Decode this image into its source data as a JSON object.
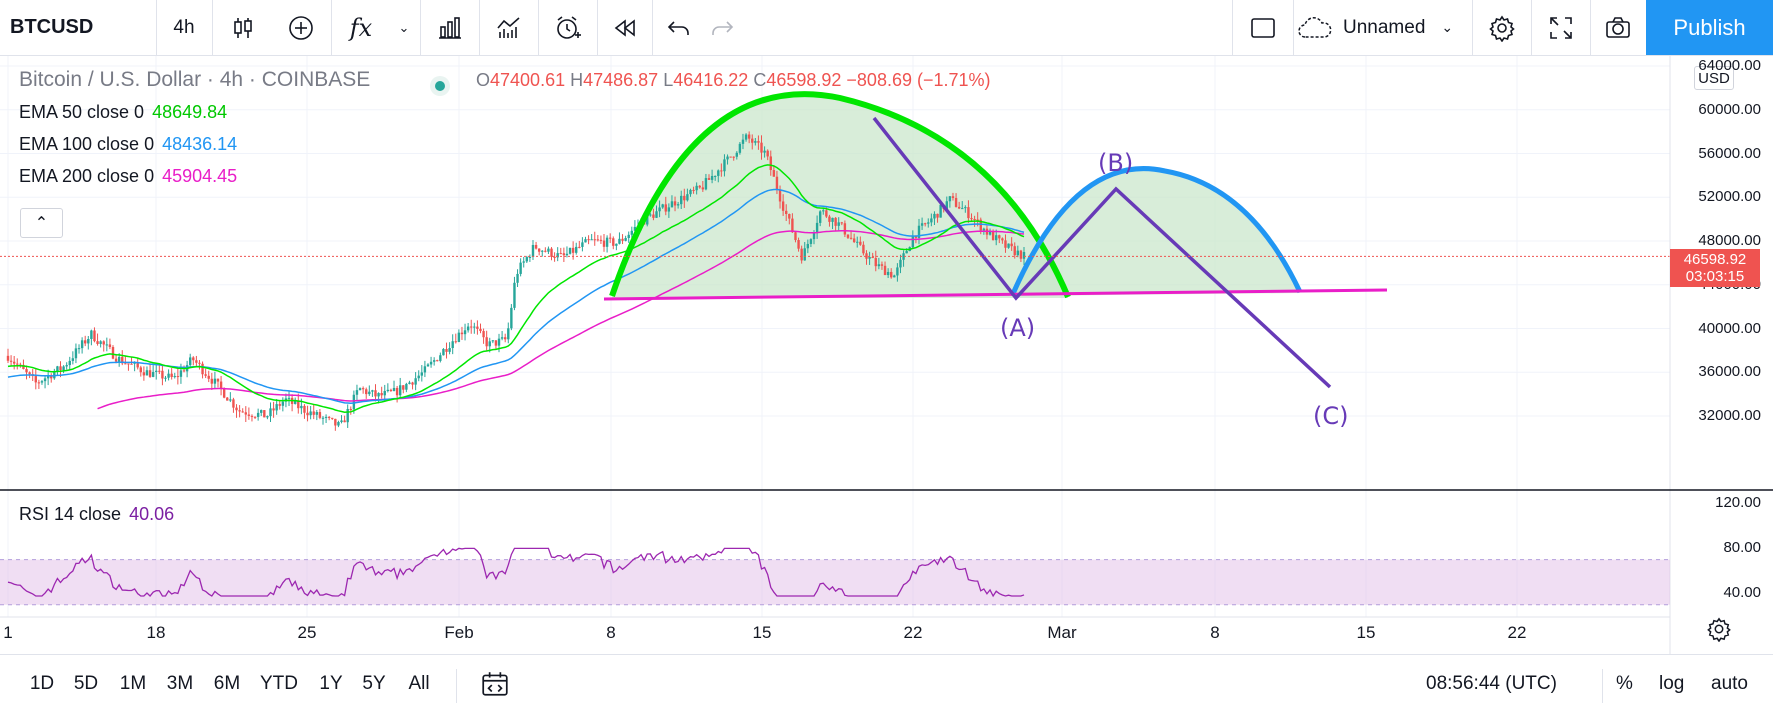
{
  "toolbar": {
    "symbol": "BTCUSD",
    "interval": "4h",
    "chart_style_icon": "candles-icon",
    "compare_icon": "plus-circle-icon",
    "indicators_icon": "fx-icon",
    "template_icon": "bar-chart-icon",
    "financials_icon": "line-bars-icon",
    "alert_icon": "alarm-clock-icon",
    "replay_icon": "rewind-icon",
    "undo_icon": "undo-icon",
    "redo_icon": "redo-icon",
    "layout_icon": "square-icon",
    "layout_name": "Unnamed",
    "settings_icon": "gear-icon",
    "fullscreen_icon": "fullscreen-icon",
    "snapshot_icon": "camera-icon",
    "publish_label": "Publish"
  },
  "legend": {
    "title": "Bitcoin / U.S. Dollar · 4h · COINBASE",
    "ohlc": {
      "o_label": "O",
      "o_value": "47400.61",
      "h_label": "H",
      "h_value": "47486.87",
      "l_label": "L",
      "l_value": "46416.22",
      "c_label": "C",
      "c_value": "46598.92",
      "change": "−808.69 (−1.71%)"
    },
    "indicators": [
      {
        "label": "EMA 50 close 0",
        "value": "48649.84",
        "color": "#00e600"
      },
      {
        "label": "EMA 100 close 0",
        "value": "48436.14",
        "color": "#2196f3"
      },
      {
        "label": "EMA 200 close 0",
        "value": "45904.45",
        "color": "#e91ec8"
      }
    ],
    "collapse_icon": "chevron-up-icon"
  },
  "price_axis": {
    "currency": "USD",
    "ticks": [
      "64000.00",
      "60000.00",
      "56000.00",
      "52000.00",
      "48000.00",
      "44000.00",
      "40000.00",
      "36000.00",
      "32000.00"
    ],
    "last_price": "46598.92",
    "countdown": "03:03:15"
  },
  "annotations": {
    "wave_a": "(A)",
    "wave_b": "(B)",
    "wave_c": "(C)"
  },
  "rsi": {
    "label": "RSI 14 close",
    "value": "40.06",
    "ticks": [
      "120.00",
      "80.00",
      "40.00"
    ],
    "band_upper": 70,
    "band_lower": 30
  },
  "time_axis": {
    "labels": [
      "1",
      "18",
      "25",
      "Feb",
      "8",
      "15",
      "22",
      "Mar",
      "8",
      "15",
      "22"
    ],
    "settings_icon": "gear-icon"
  },
  "bottombar": {
    "ranges": [
      "1D",
      "5D",
      "1M",
      "3M",
      "6M",
      "YTD",
      "1Y",
      "5Y",
      "All"
    ],
    "goto_icon": "calendar-range-icon",
    "clock": "08:56:44 (UTC)",
    "percent_label": "%",
    "log_label": "log",
    "auto_label": "auto"
  },
  "colors": {
    "up": "#26a69a",
    "down": "#ef5350",
    "ema50": "#00e600",
    "ema100": "#2196f3",
    "ema200": "#e91ec8",
    "arc_green": "#00e600",
    "arc_blue": "#2196f3",
    "wave_lines": "#673ab7",
    "neckline": "#e91ec8",
    "rsi": "#9c27b0",
    "publish": "#2196f3"
  },
  "chart_data": {
    "type": "candlestick",
    "title": "Bitcoin / U.S. Dollar · 4h · COINBASE",
    "price_range": [
      30000,
      64000
    ],
    "x_labels": [
      "1",
      "18",
      "25",
      "Feb",
      "8",
      "15",
      "22",
      "Mar",
      "8",
      "15",
      "22"
    ],
    "price_path": [
      [
        0,
        37500
      ],
      [
        3,
        35000
      ],
      [
        6,
        36500
      ],
      [
        9,
        39500
      ],
      [
        12,
        37200
      ],
      [
        15,
        36000
      ],
      [
        18,
        35400
      ],
      [
        20,
        37200
      ],
      [
        23,
        34500
      ],
      [
        25,
        32500
      ],
      [
        28,
        32000
      ],
      [
        30,
        33500
      ],
      [
        32,
        32600
      ],
      [
        34,
        31800
      ],
      [
        36,
        31000
      ],
      [
        38,
        34500
      ],
      [
        40,
        33800
      ],
      [
        42,
        34200
      ],
      [
        45,
        36000
      ],
      [
        48,
        38800
      ],
      [
        50,
        40500
      ],
      [
        52,
        38500
      ],
      [
        54,
        39000
      ],
      [
        55,
        45000
      ],
      [
        57,
        47500
      ],
      [
        60,
        46500
      ],
      [
        63,
        48000
      ],
      [
        66,
        47800
      ],
      [
        69,
        50000
      ],
      [
        72,
        51500
      ],
      [
        75,
        52800
      ],
      [
        78,
        55500
      ],
      [
        80,
        57500
      ],
      [
        82,
        56000
      ],
      [
        84,
        51000
      ],
      [
        86,
        46500
      ],
      [
        88,
        50800
      ],
      [
        90,
        49500
      ],
      [
        92,
        47500
      ],
      [
        94,
        45800
      ],
      [
        96,
        44800
      ],
      [
        98,
        48500
      ],
      [
        100,
        50000
      ],
      [
        102,
        51800
      ],
      [
        104,
        50500
      ],
      [
        106,
        48800
      ],
      [
        108,
        47500
      ],
      [
        110,
        46600
      ]
    ],
    "ema50_value": 48649.84,
    "ema100_value": 48436.14,
    "ema200_value": 45904.45,
    "last_price": 46598.92,
    "rsi_last": 40.06
  }
}
